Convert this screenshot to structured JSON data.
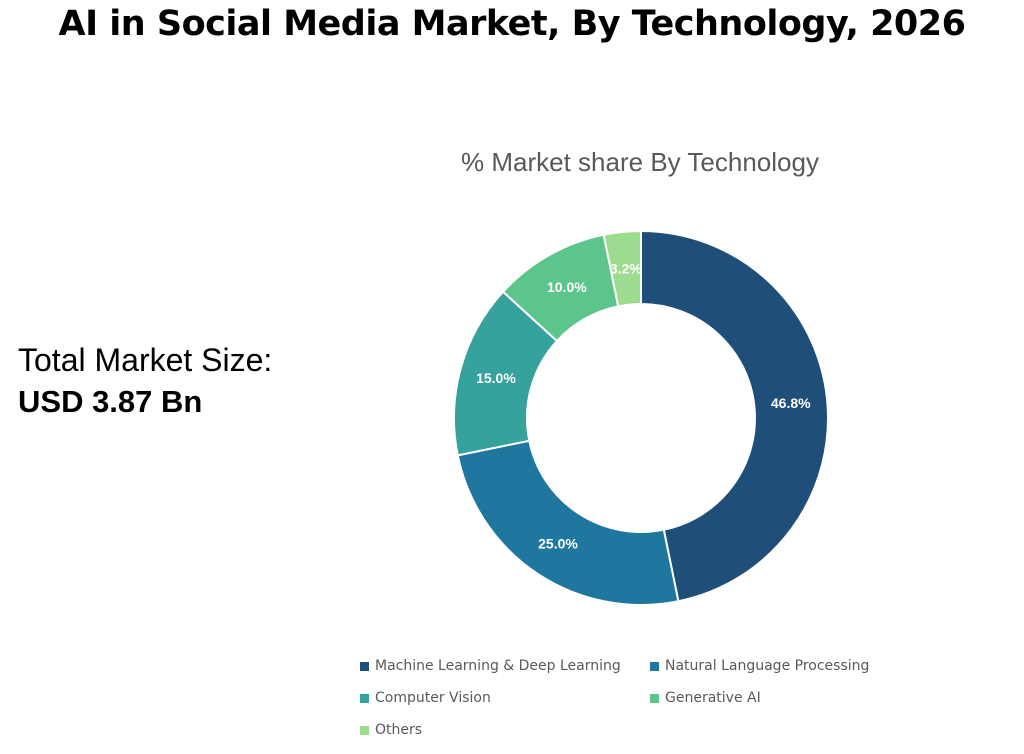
{
  "title": "AI in Social Media Market, By Technology, 2026",
  "market_size": {
    "label": "Total Market Size:",
    "value": "USD 3.87 Bn"
  },
  "chart_data": {
    "type": "pie",
    "donut": true,
    "title": "% Market share By Technology",
    "legend_position": "bottom",
    "slices": [
      {
        "name": "Machine Learning & Deep Learning",
        "value": 46.8,
        "label": "46.8%",
        "color": "#1f4e79"
      },
      {
        "name": "Natural Language Processing",
        "value": 25.0,
        "label": "25.0%",
        "color": "#1f77a0"
      },
      {
        "name": "Computer Vision",
        "value": 15.0,
        "label": "15.0%",
        "color": "#35a39b"
      },
      {
        "name": "Generative AI",
        "value": 10.0,
        "label": "10.0%",
        "color": "#5cc58b"
      },
      {
        "name": "Others",
        "value": 3.2,
        "label": "3.2%",
        "color": "#9ddc8f"
      }
    ]
  }
}
